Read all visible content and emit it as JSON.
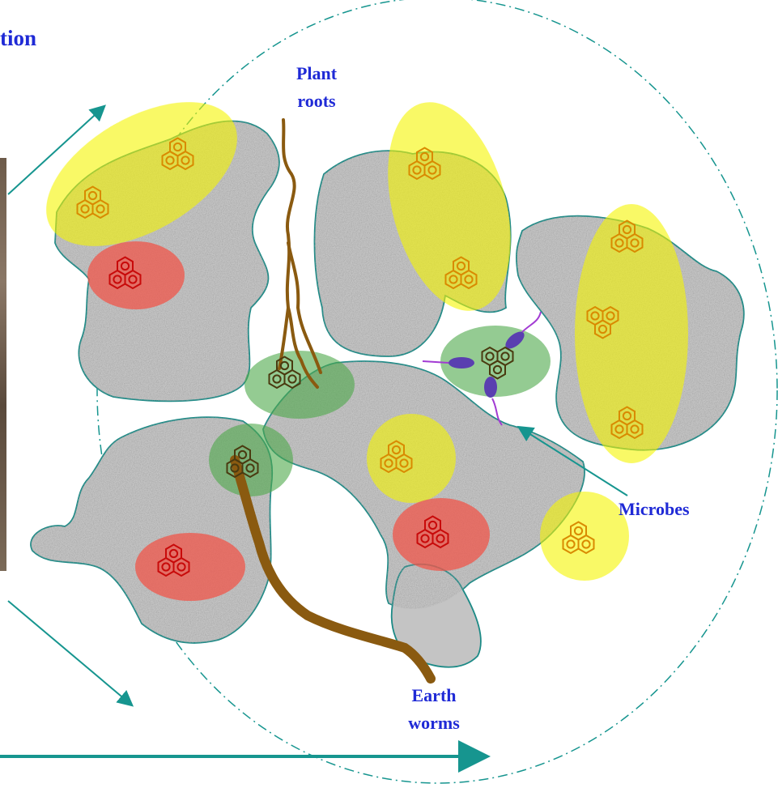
{
  "title_fragment": "tion",
  "labels": {
    "plant_roots": [
      "Plant",
      "roots"
    ],
    "microbes": "Microbes",
    "earth_worms": [
      "Earth",
      "worms"
    ]
  },
  "colors": {
    "label_blue": "#1f2ad6",
    "teal": "#16958f",
    "grain_fill": "#c4c4c4",
    "grain_edge": "#1c8a86",
    "root_brown": "#8a5a10",
    "yellow_zone": "#f5f500",
    "red_zone": "#f0564a",
    "green_zone": "#4da84a",
    "microbe_purple": "#5a3fb0"
  },
  "icons": [
    "hydrocarbon-molecule-icon",
    "microbe-icon",
    "plant-root-icon",
    "earthworm-icon"
  ]
}
